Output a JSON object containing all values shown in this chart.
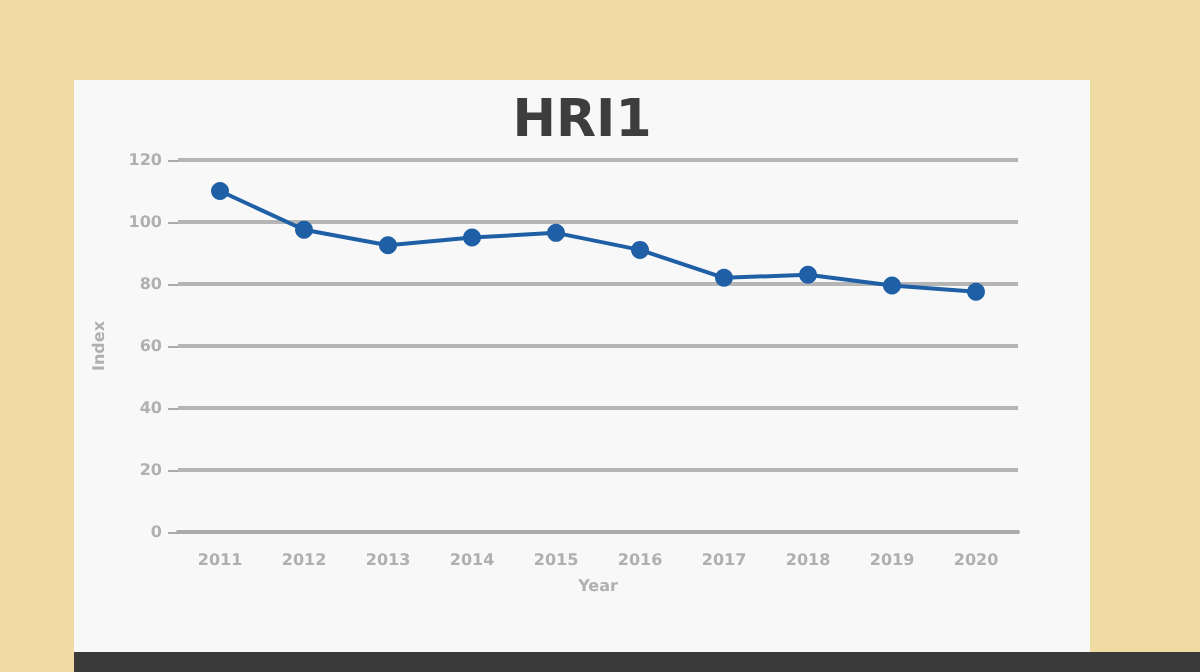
{
  "chart_data": {
    "type": "line",
    "title": "HRI1",
    "xlabel": "Year",
    "ylabel": "Index",
    "categories": [
      "2011",
      "2012",
      "2013",
      "2014",
      "2015",
      "2016",
      "2017",
      "2018",
      "2019",
      "2020"
    ],
    "series": [
      {
        "color": "#1f5fa6",
        "values": [
          110,
          97.5,
          92.5,
          95,
          96.5,
          91,
          82,
          83,
          79.5,
          77.5
        ]
      }
    ],
    "ylim": [
      0,
      120
    ],
    "yticks": [
      0,
      20,
      40,
      60,
      80,
      100,
      120
    ],
    "grid": "y",
    "marker": "circle",
    "line_style": "solid"
  }
}
